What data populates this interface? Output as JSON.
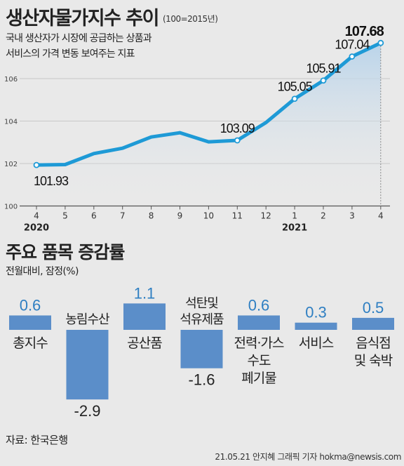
{
  "header": {
    "title": "생산자물가지수 추이",
    "title_note": "(100=2015년)",
    "description_lines": [
      "국내 생산자가 시장에 공급하는 상품과",
      "서비스의 가격 변동 보여주는 지표"
    ]
  },
  "section2": {
    "title": "주요 품목 증감률",
    "unit_note": "전월대비, 잠정(%)"
  },
  "footer": {
    "source": "자료: 한국은행",
    "credit": "21.05.21 안지혜 그래픽 기자 hokma@newsis.com"
  },
  "colors": {
    "background": "#e9e9e9",
    "line": "#1e9ad6",
    "area_top": "#b7d3ea",
    "bar": "#5b8ec9",
    "value_label": "#2f7fc2"
  },
  "chart_data": [
    {
      "type": "line",
      "title": "생산자물가지수 추이",
      "x": [
        "4",
        "5",
        "6",
        "7",
        "8",
        "9",
        "10",
        "11",
        "12",
        "1",
        "2",
        "3",
        "4"
      ],
      "year_labels": [
        {
          "label": "2020",
          "at_index": 0
        },
        {
          "label": "2021",
          "at_index": 9
        }
      ],
      "series": [
        {
          "values": [
            101.93,
            101.95,
            102.47,
            102.72,
            103.25,
            103.45,
            103.02,
            103.09,
            103.93,
            105.05,
            105.91,
            107.04,
            107.68
          ]
        }
      ],
      "point_labels": [
        {
          "index": 0,
          "text": "101.93"
        },
        {
          "index": 7,
          "text": "103.09"
        },
        {
          "index": 9,
          "text": "105.05"
        },
        {
          "index": 10,
          "text": "105.91"
        },
        {
          "index": 11,
          "text": "107.04"
        },
        {
          "index": 12,
          "text": "107.68"
        }
      ],
      "y_ticks": [
        100,
        102,
        104,
        106
      ],
      "ylim": [
        100,
        108.2
      ],
      "grid": true
    },
    {
      "type": "bar",
      "title": "주요 품목 증감률",
      "categories": [
        {
          "lines": [
            "총지수"
          ],
          "label_position": "below"
        },
        {
          "lines": [
            "농림수산"
          ],
          "label_position": "above"
        },
        {
          "lines": [
            "공산품"
          ],
          "label_position": "below"
        },
        {
          "lines": [
            "석탄및",
            "석유제품"
          ],
          "label_position": "above"
        },
        {
          "lines": [
            "전력·가스",
            "수도",
            "폐기물"
          ],
          "label_position": "below"
        },
        {
          "lines": [
            "서비스"
          ],
          "label_position": "below"
        },
        {
          "lines": [
            "음식점",
            "및 숙박"
          ],
          "label_position": "below"
        }
      ],
      "values": [
        0.6,
        -2.9,
        1.1,
        -1.6,
        0.6,
        0.3,
        0.5
      ],
      "value_labels": [
        "0.6",
        "-2.9",
        "1.1",
        "-1.6",
        "0.6",
        "0.3",
        "0.5"
      ]
    }
  ]
}
